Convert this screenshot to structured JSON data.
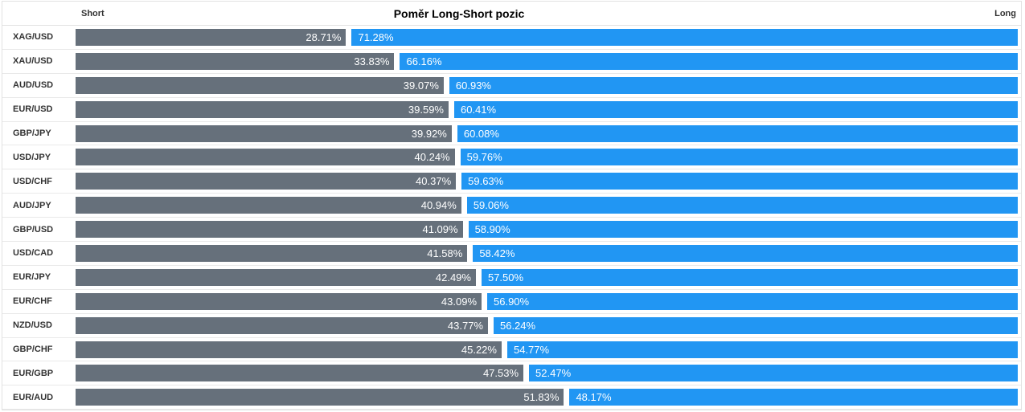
{
  "chart_data": {
    "type": "bar",
    "orientation": "horizontal",
    "stacked": true,
    "title": "Poměr Long-Short pozic",
    "axis_labels": {
      "left": "Short",
      "right": "Long"
    },
    "value_unit": "%",
    "xlim": [
      0,
      100
    ],
    "grid": false,
    "legend_position": "none",
    "categories": [
      "XAG/USD",
      "XAU/USD",
      "AUD/USD",
      "EUR/USD",
      "GBP/JPY",
      "USD/JPY",
      "USD/CHF",
      "AUD/JPY",
      "GBP/USD",
      "USD/CAD",
      "EUR/JPY",
      "EUR/CHF",
      "NZD/USD",
      "GBP/CHF",
      "EUR/GBP",
      "EUR/AUD"
    ],
    "series": [
      {
        "name": "Short",
        "color": "#66707B",
        "values": [
          28.71,
          33.83,
          39.07,
          39.59,
          39.92,
          40.24,
          40.37,
          40.94,
          41.09,
          41.58,
          42.49,
          43.09,
          43.77,
          45.22,
          47.53,
          51.83
        ]
      },
      {
        "name": "Long",
        "color": "#2196F3",
        "values": [
          71.28,
          66.16,
          60.93,
          60.41,
          60.08,
          59.76,
          59.63,
          59.06,
          58.9,
          58.42,
          57.5,
          56.9,
          56.24,
          54.77,
          52.47,
          48.17
        ]
      }
    ]
  },
  "colors": {
    "short_bar": "#66707B",
    "long_bar": "#2196F3",
    "border": "#e2e2e2",
    "label_text": "#333333",
    "bar_text": "#ffffff"
  }
}
